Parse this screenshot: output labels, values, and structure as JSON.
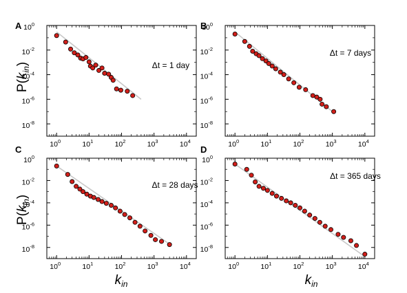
{
  "figure": {
    "ylabel": {
      "base": "P(",
      "var": "k",
      "sub": "in",
      "close": ")"
    },
    "xlabel": {
      "var": "k",
      "sub": "in"
    }
  },
  "chart_data": [
    {
      "type": "scatter",
      "panel": "A",
      "annotation": "Δt = 1 day",
      "xscale": "log",
      "yscale": "log",
      "xlim": [
        0.5,
        20000
      ],
      "ylim": [
        1e-09,
        1
      ],
      "xticks": [
        "10^0",
        "10^1",
        "10^2",
        "10^3",
        "10^4"
      ],
      "yticks": [
        "10^0",
        "10^-2",
        "10^-4",
        "10^-6",
        "10^-8"
      ],
      "fit_line": {
        "x": [
          1,
          400
        ],
        "y": [
          0.3,
          1e-06
        ],
        "color": "#c8c8c8"
      },
      "marker_color": "#d11f1a",
      "points": [
        [
          1,
          0.15
        ],
        [
          1.9,
          0.045
        ],
        [
          2.7,
          0.012
        ],
        [
          3.5,
          0.006
        ],
        [
          4.5,
          0.004
        ],
        [
          5.5,
          0.0022
        ],
        [
          6.5,
          0.0019
        ],
        [
          8,
          0.0025
        ],
        [
          10,
          0.0011
        ],
        [
          11,
          0.0005
        ],
        [
          13,
          0.00035
        ],
        [
          16,
          0.0006
        ],
        [
          20,
          0.00022
        ],
        [
          25,
          0.00035
        ],
        [
          30,
          0.00013
        ],
        [
          40,
          0.00011
        ],
        [
          48,
          6e-05
        ],
        [
          55,
          3.5e-05
        ],
        [
          70,
          7e-06
        ],
        [
          95,
          5.5e-06
        ],
        [
          150,
          4.5e-06
        ],
        [
          220,
          2e-06
        ]
      ]
    },
    {
      "type": "scatter",
      "panel": "B",
      "annotation": "Δt = 7 days",
      "xscale": "log",
      "yscale": "log",
      "xlim": [
        0.5,
        20000
      ],
      "ylim": [
        1e-09,
        1
      ],
      "xticks": [
        "10^0",
        "10^1",
        "10^2",
        "10^3",
        "10^4"
      ],
      "yticks": [
        "10^0",
        "10^-2",
        "10^-4",
        "10^-6",
        "10^-8"
      ],
      "fit_line": {
        "x": [
          1,
          1000
        ],
        "y": [
          0.3,
          1e-07
        ],
        "color": "#c8c8c8"
      },
      "marker_color": "#d11f1a",
      "points": [
        [
          1,
          0.2
        ],
        [
          2,
          0.05
        ],
        [
          2.8,
          0.02
        ],
        [
          3.5,
          0.008
        ],
        [
          4.5,
          0.005
        ],
        [
          5.5,
          0.0035
        ],
        [
          7,
          0.002
        ],
        [
          9,
          0.0013
        ],
        [
          11,
          0.0008
        ],
        [
          14,
          0.0005
        ],
        [
          18,
          0.0003
        ],
        [
          25,
          0.00016
        ],
        [
          32,
          0.0001
        ],
        [
          45,
          4.5e-05
        ],
        [
          65,
          2.2e-05
        ],
        [
          95,
          9.5e-06
        ],
        [
          150,
          6e-06
        ],
        [
          250,
          2e-06
        ],
        [
          330,
          1.5e-06
        ],
        [
          420,
          1e-06
        ],
        [
          480,
          4e-07
        ],
        [
          650,
          2.5e-07
        ],
        [
          1100,
          1e-07
        ]
      ]
    },
    {
      "type": "scatter",
      "panel": "C",
      "annotation": "Δt = 28 days",
      "xscale": "log",
      "yscale": "log",
      "xlim": [
        0.5,
        20000
      ],
      "ylim": [
        1e-09,
        1
      ],
      "xticks": [
        "10^0",
        "10^1",
        "10^2",
        "10^3",
        "10^4"
      ],
      "yticks": [
        "10^0",
        "10^-2",
        "10^-4",
        "10^-6",
        "10^-8"
      ],
      "fit_line": {
        "x": [
          1,
          3000
        ],
        "y": [
          0.2,
          2e-08
        ],
        "color": "#c8c8c8"
      },
      "marker_color": "#d11f1a",
      "points": [
        [
          1,
          0.2
        ],
        [
          2.2,
          0.035
        ],
        [
          3,
          0.008
        ],
        [
          4,
          0.003
        ],
        [
          5.2,
          0.0017
        ],
        [
          6.5,
          0.001
        ],
        [
          8.5,
          0.0006
        ],
        [
          11,
          0.0004
        ],
        [
          14,
          0.0003
        ],
        [
          19,
          0.0002
        ],
        [
          25,
          0.00013
        ],
        [
          34,
          9e-05
        ],
        [
          48,
          6e-05
        ],
        [
          65,
          3.5e-05
        ],
        [
          90,
          1.8e-05
        ],
        [
          125,
          9e-06
        ],
        [
          180,
          4.5e-06
        ],
        [
          260,
          1.8e-06
        ],
        [
          370,
          8e-07
        ],
        [
          530,
          3e-07
        ],
        [
          800,
          1.2e-07
        ],
        [
          1100,
          5e-08
        ],
        [
          1700,
          3.5e-08
        ],
        [
          3000,
          1.8e-08
        ]
      ]
    },
    {
      "type": "scatter",
      "panel": "D",
      "annotation": "Δt = 365 days",
      "xscale": "log",
      "yscale": "log",
      "xlim": [
        0.5,
        20000
      ],
      "ylim": [
        1e-09,
        1
      ],
      "xticks": [
        "10^0",
        "10^1",
        "10^2",
        "10^3",
        "10^4"
      ],
      "yticks": [
        "10^0",
        "10^-2",
        "10^-4",
        "10^-6",
        "10^-8"
      ],
      "fit_line": {
        "x": [
          1,
          10000
        ],
        "y": [
          0.3,
          1.5e-09
        ],
        "color": "#c8c8c8"
      },
      "marker_color": "#d11f1a",
      "points": [
        [
          1,
          0.3
        ],
        [
          2.3,
          0.1
        ],
        [
          3.2,
          0.03
        ],
        [
          4.2,
          0.0075
        ],
        [
          5.5,
          0.003
        ],
        [
          7.5,
          0.002
        ],
        [
          10,
          0.0013
        ],
        [
          14,
          0.0007
        ],
        [
          19,
          0.0004
        ],
        [
          27,
          0.00025
        ],
        [
          38,
          0.00015
        ],
        [
          52,
          0.0001
        ],
        [
          72,
          6e-05
        ],
        [
          100,
          3.5e-05
        ],
        [
          140,
          1.8e-05
        ],
        [
          200,
          8e-06
        ],
        [
          290,
          4e-06
        ],
        [
          410,
          1.8e-06
        ],
        [
          600,
          8e-07
        ],
        [
          900,
          4e-07
        ],
        [
          1500,
          1.5e-07
        ],
        [
          2200,
          8e-08
        ],
        [
          3700,
          4e-08
        ],
        [
          5500,
          1.5e-08
        ],
        [
          10000,
          2.5e-09
        ]
      ]
    }
  ]
}
